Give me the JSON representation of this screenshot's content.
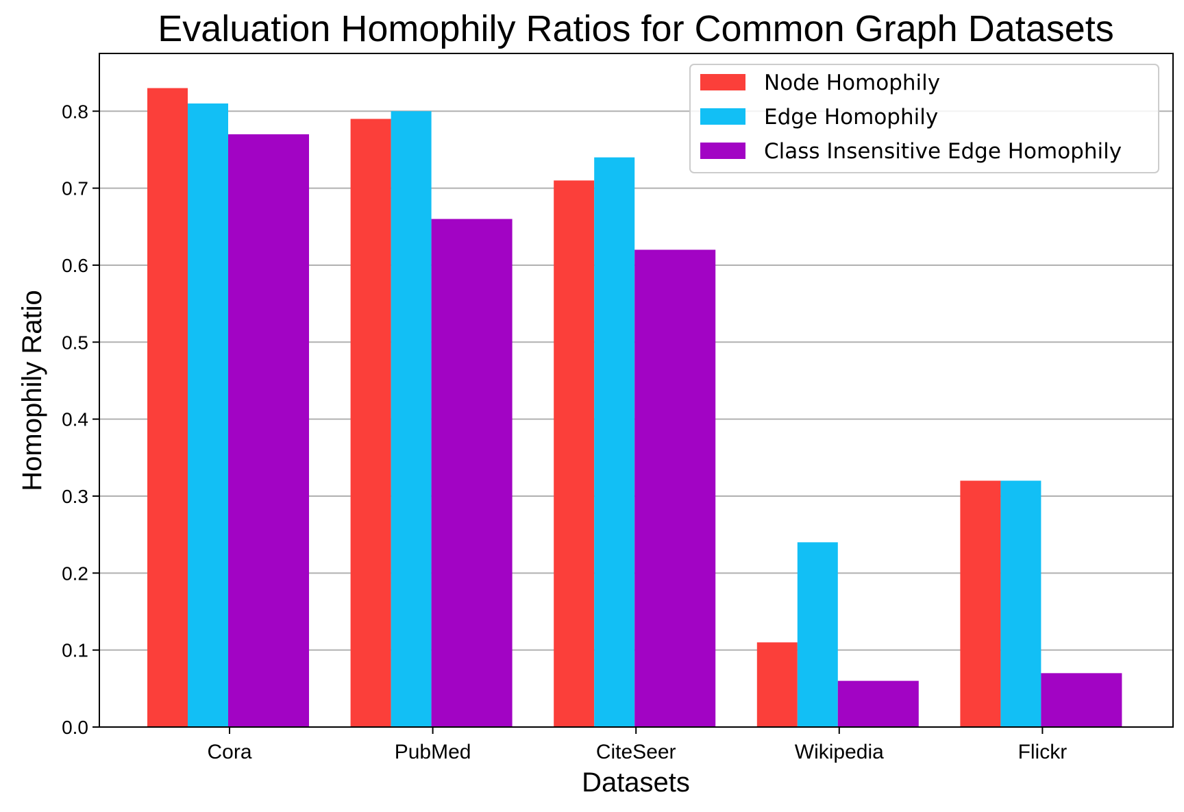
{
  "chart_data": {
    "type": "bar",
    "title": "Evaluation Homophily Ratios for Common Graph Datasets",
    "xlabel": "Datasets",
    "ylabel": "Homophily Ratio",
    "categories": [
      "Cora",
      "PubMed",
      "CiteSeer",
      "Wikipedia",
      "Flickr"
    ],
    "series": [
      {
        "name": "Node Homophily",
        "color": "#fb3f3a",
        "values": [
          0.83,
          0.79,
          0.71,
          0.11,
          0.32
        ]
      },
      {
        "name": "Edge Homophily",
        "color": "#12bff5",
        "values": [
          0.81,
          0.8,
          0.74,
          0.24,
          0.32
        ]
      },
      {
        "name": "Class Insensitive Edge Homophily",
        "color": "#a204c4",
        "values": [
          0.77,
          0.66,
          0.62,
          0.06,
          0.07
        ]
      }
    ],
    "ylim": [
      0,
      0.875
    ],
    "yticks": [
      "0.0",
      "0.1",
      "0.2",
      "0.3",
      "0.4",
      "0.5",
      "0.6",
      "0.7",
      "0.8"
    ],
    "grid": "horizontal",
    "legend_position": "top-right"
  }
}
